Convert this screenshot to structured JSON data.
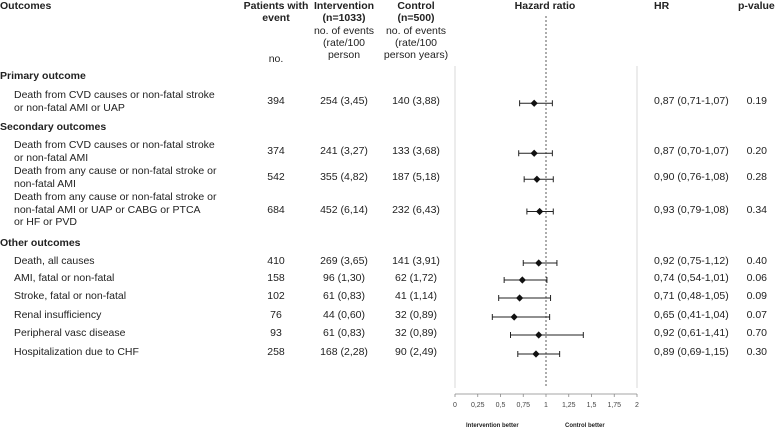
{
  "headers": {
    "outcomes": "Outcomes",
    "patients_line1": "Patients with",
    "patients_line2": "event",
    "patients_line3": "no.",
    "intervention_line1": "Intervention",
    "intervention_line2": "(n=1033)",
    "intervention_line3": "no. of events",
    "intervention_line4": "(rate/100",
    "intervention_line5": "person",
    "control_line1": "Control",
    "control_line2": "(n=500)",
    "control_line3": "no. of events",
    "control_line4": "(rate/100",
    "control_line5": "person years)",
    "hazard_ratio": "Hazard ratio",
    "hr": "HR",
    "pvalue": "p-value"
  },
  "sections": {
    "primary": "Primary outcome",
    "secondary": "Secondary outcomes",
    "other": "Other outcomes"
  },
  "rows": [
    {
      "label1": "Death from CVD causes or non-fatal stroke",
      "label2": "or non-fatal AMI or UAP",
      "label3": "",
      "patients": "394",
      "intervention": "254 (3,45)",
      "control": "140 (3,88)",
      "hr": "0,87 (0,71-1,07)",
      "p": "0.19"
    },
    {
      "label1": "Death from CVD causes or non-fatal stroke",
      "label2": "or non-fatal AMI",
      "label3": "",
      "patients": "374",
      "intervention": "241 (3,27)",
      "control": "133 (3,68)",
      "hr": "0,87 (0,70-1,07)",
      "p": "0.20"
    },
    {
      "label1": "Death from any cause or non-fatal stroke or",
      "label2": "non-fatal AMI",
      "label3": "",
      "patients": "542",
      "intervention": "355 (4,82)",
      "control": "187 (5,18)",
      "hr": "0,90 (0,76-1,08)",
      "p": "0.28"
    },
    {
      "label1": "Death from any cause or non-fatal stroke or",
      "label2": "non-fatal AMI  or UAP or CABG or PTCA",
      "label3": "or HF or PVD",
      "patients": "684",
      "intervention": "452 (6,14)",
      "control": "232 (6,43)",
      "hr": "0,93 (0,79-1,08)",
      "p": "0.34"
    },
    {
      "label1": "Death, all causes",
      "label2": "",
      "label3": "",
      "patients": "410",
      "intervention": "269 (3,65)",
      "control": "141 (3,91)",
      "hr": "0,92 (0,75-1,12)",
      "p": "0.40"
    },
    {
      "label1": "AMI, fatal or non-fatal",
      "label2": "",
      "label3": "",
      "patients": "158",
      "intervention": "96 (1,30)",
      "control": "62 (1,72)",
      "hr": "0,74 (0,54-1,01)",
      "p": "0.06"
    },
    {
      "label1": "Stroke, fatal or non-fatal",
      "label2": "",
      "label3": "",
      "patients": "102",
      "intervention": "61 (0,83)",
      "control": "41 (1,14)",
      "hr": "0,71 (0,48-1,05)",
      "p": "0.09"
    },
    {
      "label1": "Renal insufficiency",
      "label2": "",
      "label3": "",
      "patients": "76",
      "intervention": "44 (0,60)",
      "control": "32 (0,89)",
      "hr": "0,65 (0,41-1,04)",
      "p": "0.07"
    },
    {
      "label1": "Peripheral vasc disease",
      "label2": "",
      "label3": "",
      "patients": "93",
      "intervention": "61 (0,83)",
      "control": "32 (0,89)",
      "hr": "0,92 (0,61-1,41)",
      "p": "0.70"
    },
    {
      "label1": "Hospitalization due to CHF",
      "label2": "",
      "label3": "",
      "patients": "258",
      "intervention": "168 (2,28)",
      "control": "90 (2,49)",
      "hr": "0,89 (0,69-1,15)",
      "p": "0.30"
    }
  ],
  "chart_data": {
    "type": "forest",
    "title": "Hazard ratio",
    "xlim": [
      0,
      2
    ],
    "reference_line": 1,
    "x_ticks": [
      "0",
      "0,25",
      "0,5",
      "0,75",
      "1",
      "1,25",
      "1,5",
      "1,75",
      "2"
    ],
    "left_label": "Intervention better",
    "right_label": "Control better",
    "points": [
      {
        "hr": 0.87,
        "lo": 0.71,
        "hi": 1.07
      },
      {
        "hr": 0.87,
        "lo": 0.7,
        "hi": 1.07
      },
      {
        "hr": 0.9,
        "lo": 0.76,
        "hi": 1.08
      },
      {
        "hr": 0.93,
        "lo": 0.79,
        "hi": 1.08
      },
      {
        "hr": 0.92,
        "lo": 0.75,
        "hi": 1.12
      },
      {
        "hr": 0.74,
        "lo": 0.54,
        "hi": 1.01
      },
      {
        "hr": 0.71,
        "lo": 0.48,
        "hi": 1.05
      },
      {
        "hr": 0.65,
        "lo": 0.41,
        "hi": 1.04
      },
      {
        "hr": 0.92,
        "lo": 0.61,
        "hi": 1.41
      },
      {
        "hr": 0.89,
        "lo": 0.69,
        "hi": 1.15
      }
    ]
  }
}
